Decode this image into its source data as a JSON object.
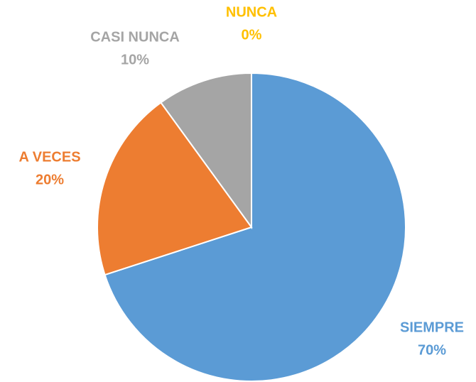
{
  "chart_data": {
    "type": "pie",
    "categories": [
      "SIEMPRE",
      "A VECES",
      "CASI NUNCA",
      "NUNCA"
    ],
    "values": [
      70,
      20,
      10,
      0
    ],
    "value_labels": [
      "70%",
      "20%",
      "10%",
      "0%"
    ],
    "colors": [
      "#5b9bd5",
      "#ed7d31",
      "#a5a5a5",
      "#ffc000"
    ]
  }
}
